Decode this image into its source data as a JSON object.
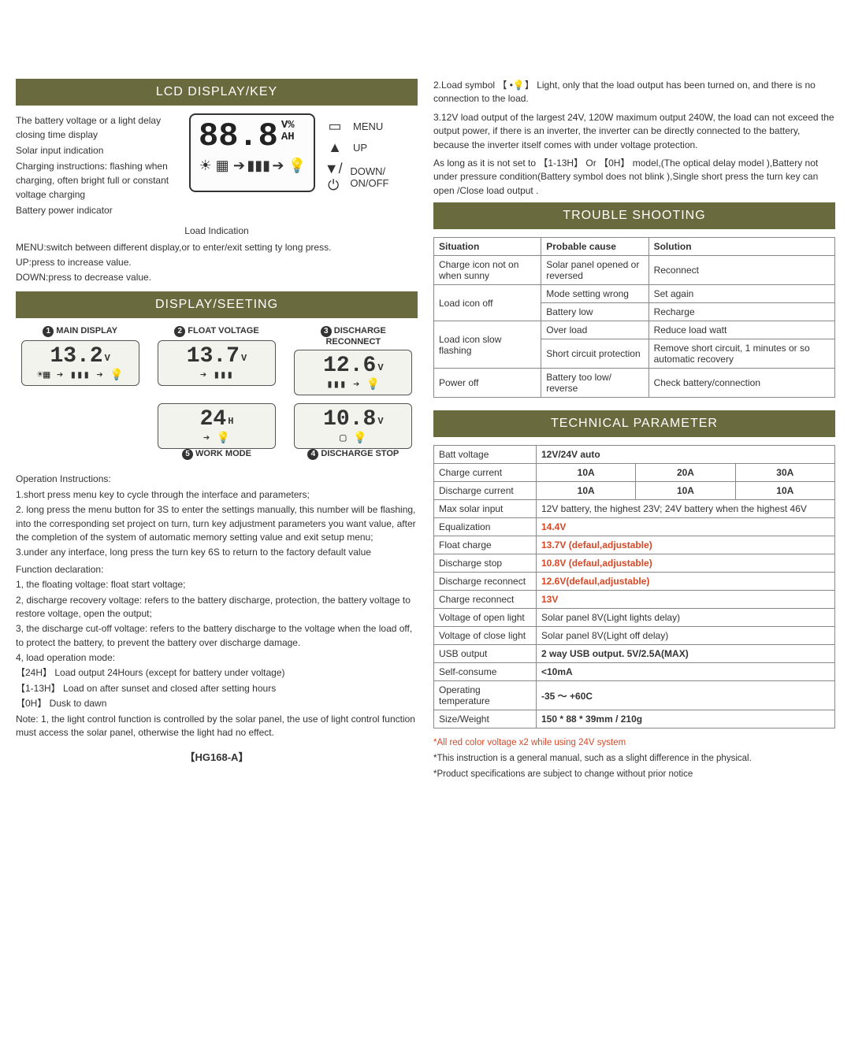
{
  "left": {
    "header1": "LCD DISPLAY/KEY",
    "header2": "DISPLAY/SEETING",
    "lcd": {
      "left_labels": [
        "The battery voltage or a light delay closing time display",
        "Solar input indication",
        "Charging instructions: flashing when charging, often bright full or constant voltage charging",
        "Battery power indicator"
      ],
      "digits": "88.8",
      "unit1": "V%",
      "unit2": "AH",
      "load_indication": "Load Indication",
      "buttons": [
        {
          "glyph": "▭",
          "label": "MENU"
        },
        {
          "glyph": "▲",
          "label": "UP"
        },
        {
          "glyph": "▼/⏻",
          "label": "DOWN/ ON/OFF"
        }
      ]
    },
    "key_instr": [
      "MENU:switch between different display,or to enter/exit setting ty long press.",
      "UP:press to increase value.",
      "DOWN:press to decrease value."
    ],
    "panels": [
      {
        "num": "1",
        "title": "MAIN DISPLAY",
        "value": "13.2",
        "unit": "V",
        "icons": "☀▦ ➔ ▮▮▮ ➔ 💡"
      },
      {
        "num": "2",
        "title": "FLOAT VOLTAGE",
        "value": "13.7",
        "unit": "V",
        "icons": "➔ ▮▮▮"
      },
      {
        "num": "3",
        "title": "DISCHARGE RECONNECT",
        "value": "12.6",
        "unit": "V",
        "icons": "▮▮▮ ➔ 💡"
      },
      {
        "num": "5",
        "title": "WORK MODE",
        "value": "24",
        "unit": "H",
        "icons": "➔ 💡"
      },
      {
        "num": "4",
        "title": "DISCHARGE STOP",
        "value": "10.8",
        "unit": "V",
        "icons": "▢   💡"
      }
    ],
    "op_heading": "Operation Instructions:",
    "op_lines": [
      "1.short press menu key to cycle through the interface and parameters;",
      "2. long press the menu button for 3S to enter the settings manually, this number will be flashing, into the corresponding set project on turn, turn key adjustment parameters you want value, after the completion of the system of automatic memory setting value and exit setup menu;",
      "3.under any interface, long press the turn key 6S to return to the factory default value"
    ],
    "func_heading": "Function declaration:",
    "func_lines": [
      "1, the floating voltage: float start voltage;",
      "2, discharge recovery voltage: refers to the battery discharge, protection, the battery voltage to restore voltage, open the output;",
      "3, the discharge cut-off voltage: refers to the battery discharge to the voltage when the load off, to protect the battery, to prevent the battery over discharge damage.",
      "4, load operation mode:",
      "【24H】    Load output 24Hours (except for battery under voltage)",
      "【1-13H】 Load on after sunset and closed after setting hours",
      "【0H】 Dusk to dawn",
      "Note: 1, the light control function is controlled by the solar panel, the use of light control function must access the solar panel, otherwise the light had no effect."
    ],
    "model": "【HG168-A】"
  },
  "right": {
    "pre_text": [
      "2.Load symbol 【 •💡】 Light, only that the load output has been turned on, and there is no connection to the load.",
      "3.12V load output of the largest 24V, 120W maximum output 240W, the load can not exceed the output power, if there is an inverter, the inverter can be directly connected to the battery, because the inverter itself comes with under voltage protection.",
      "As long as it is not set to 【1-13H】 Or 【0H】 model,(The optical delay model ),Battery not under pressure condition(Battery symbol does not blink ),Single short press the turn key can open /Close load output ."
    ],
    "header_trouble": "TROUBLE SHOOTING",
    "trouble_cols": [
      "Situation",
      "Probable cause",
      "Solution"
    ],
    "trouble_rows": [
      {
        "sit": "Charge icon not on when sunny",
        "cause": "Solar panel opened or reversed",
        "sol": "Reconnect",
        "sit_rowspan": 1
      },
      {
        "sit": "Load icon off",
        "cause": "Mode setting wrong",
        "sol": "Set again",
        "sit_rowspan": 2
      },
      {
        "sit": "",
        "cause": "Battery low",
        "sol": "Recharge"
      },
      {
        "sit": "Load icon slow flashing",
        "cause": "Over load",
        "sol": "Reduce load watt",
        "sit_rowspan": 2
      },
      {
        "sit": "",
        "cause": "Short circuit protection",
        "sol": "Remove short circuit, 1 minutes or so automatic recovery"
      },
      {
        "sit": "Power off",
        "cause": "Battery too low/ reverse",
        "sol": "Check battery/connection",
        "sit_rowspan": 1
      }
    ],
    "header_tech": "TECHNICAL PARAMETER",
    "tech_rows": [
      {
        "label": "Batt voltage",
        "cells": [
          "12V/24V  auto"
        ],
        "span": 3,
        "bold": true
      },
      {
        "label": "Charge current",
        "cells": [
          "10A",
          "20A",
          "30A"
        ],
        "bold": true
      },
      {
        "label": "Discharge current",
        "cells": [
          "10A",
          "10A",
          "10A"
        ],
        "bold": true
      },
      {
        "label": "Max solar input",
        "cells": [
          "12V battery, the highest 23V; 24V battery when the highest 46V"
        ],
        "span": 3
      },
      {
        "label": "Equalization",
        "cells": [
          "14.4V"
        ],
        "span": 3,
        "red": true
      },
      {
        "label": "Float charge",
        "cells": [
          "13.7V (defaul,adjustable)"
        ],
        "span": 3,
        "red": true
      },
      {
        "label": "Discharge stop",
        "cells": [
          "10.8V (defaul,adjustable)"
        ],
        "span": 3,
        "red": true
      },
      {
        "label": "Discharge reconnect",
        "cells": [
          "12.6V(defaul,adjustable)"
        ],
        "span": 3,
        "red": true
      },
      {
        "label": "Charge reconnect",
        "cells": [
          "13V"
        ],
        "span": 3,
        "red": true
      },
      {
        "label": "Voltage of open light",
        "cells": [
          "Solar panel 8V(Light lights delay)"
        ],
        "span": 3
      },
      {
        "label": "Voltage of close light",
        "cells": [
          "Solar panel 8V(Light off delay)"
        ],
        "span": 3
      },
      {
        "label": "USB output",
        "cells": [
          "2 way USB output.  5V/2.5A(MAX)"
        ],
        "span": 3,
        "bold": true
      },
      {
        "label": "Self-consume",
        "cells": [
          "<10mA"
        ],
        "span": 3,
        "bold": true
      },
      {
        "label": "Operating temperature",
        "cells": [
          "-35 ～ +60C"
        ],
        "span": 3,
        "bold": true
      },
      {
        "label": "Size/Weight",
        "cells": [
          "150 * 88 * 39mm   /  210g"
        ],
        "span": 3,
        "bold": true
      }
    ],
    "footnotes": [
      {
        "text": "*All red color voltage x2 while using 24V system",
        "red": true
      },
      {
        "text": "*This instruction is a general manual, such as a slight difference in the physical."
      },
      {
        "text": "*Product specifications are subject to change without prior notice"
      }
    ]
  },
  "colors": {
    "header_bg": "#6a6a3f",
    "red": "#d84725",
    "border": "#888888"
  }
}
